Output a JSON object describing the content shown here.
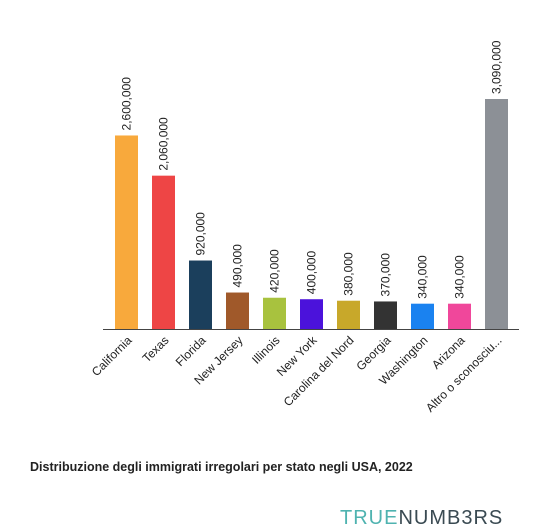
{
  "chart_data": {
    "type": "bar",
    "title": "Distribuzione degli immigrati irregolari per stato negli USA, 2022",
    "categories": [
      "California",
      "Texas",
      "Florida",
      "New Jersey",
      "Illinois",
      "New York",
      "Carolina del Nord",
      "Georgia",
      "Washington",
      "Arizona",
      "Altro o sconosciu..."
    ],
    "values": [
      2600000,
      2060000,
      920000,
      490000,
      420000,
      400000,
      380000,
      370000,
      340000,
      340000,
      3090000
    ],
    "value_labels": [
      "2,600,000",
      "2,060,000",
      "920,000",
      "490,000",
      "420,000",
      "400,000",
      "380,000",
      "370,000",
      "340,000",
      "340,000",
      "3,090,000"
    ],
    "colors": [
      "#f8a93c",
      "#ee4545",
      "#1b3f5c",
      "#a0592a",
      "#a8c23e",
      "#4b12db",
      "#c8a82a",
      "#333333",
      "#1a82f0",
      "#f0479b",
      "#8c9096"
    ]
  },
  "brand": {
    "part1": "TRUE",
    "part2": "NUMB3RS"
  }
}
